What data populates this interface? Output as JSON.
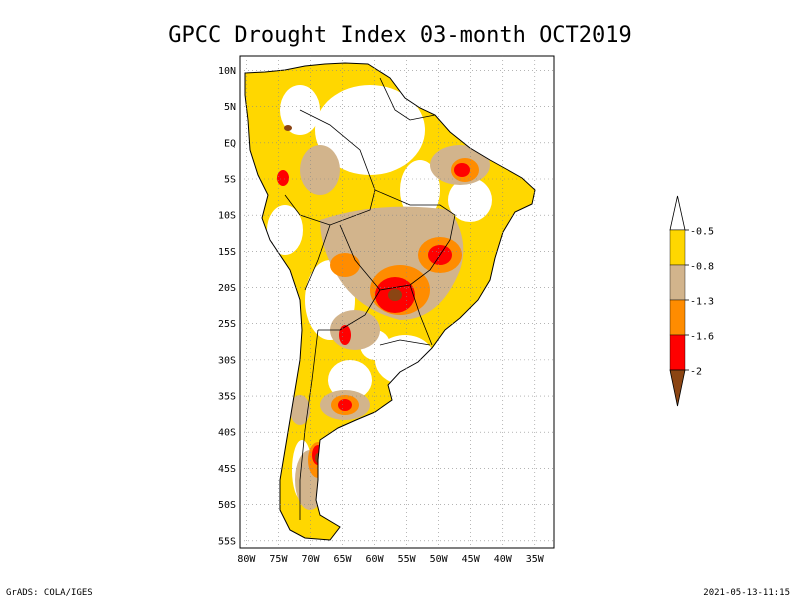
{
  "title": "GPCC Drought Index 03-month OCT2019",
  "map": {
    "lon_range": [
      -81,
      -32
    ],
    "lat_range": [
      -56,
      12
    ],
    "x_ticks": [
      "80W",
      "75W",
      "70W",
      "65W",
      "60W",
      "55W",
      "50W",
      "45W",
      "40W",
      "35W"
    ],
    "y_ticks": [
      "10N",
      "5N",
      "EQ",
      "5S",
      "10S",
      "15S",
      "20S",
      "25S",
      "30S",
      "35S",
      "40S",
      "45S",
      "50S",
      "55S"
    ],
    "grid": "dotted"
  },
  "legend": {
    "labels": [
      "-0.5",
      "-0.8",
      "-1.3",
      "-1.6",
      "-2"
    ],
    "colors": {
      "above_-0.5": "#ffffff",
      "-0.5_to_-0.8": "#ffd700",
      "-0.8_to_-1.3": "#d2b48c",
      "-1.3_to_-1.6": "#ff8c00",
      "-1.6_to_-2": "#ff0000",
      "below_-2": "#8b4513"
    }
  },
  "footer": {
    "left": "GrADS: COLA/IGES",
    "right": "2021-05-13-11:15"
  }
}
